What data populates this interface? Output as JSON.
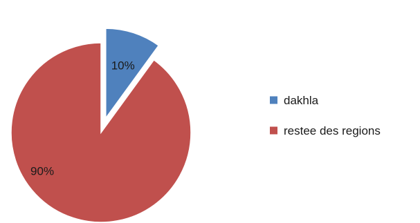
{
  "chart_data": {
    "type": "pie",
    "title": "",
    "legend_position": "right",
    "slices": [
      {
        "name": "dakhla",
        "value": 10,
        "label": "10%",
        "color": "#4f81bd",
        "exploded": true
      },
      {
        "name": "restee des regions",
        "value": 90,
        "label": "90%",
        "color": "#c0504d",
        "exploded": false
      }
    ]
  }
}
